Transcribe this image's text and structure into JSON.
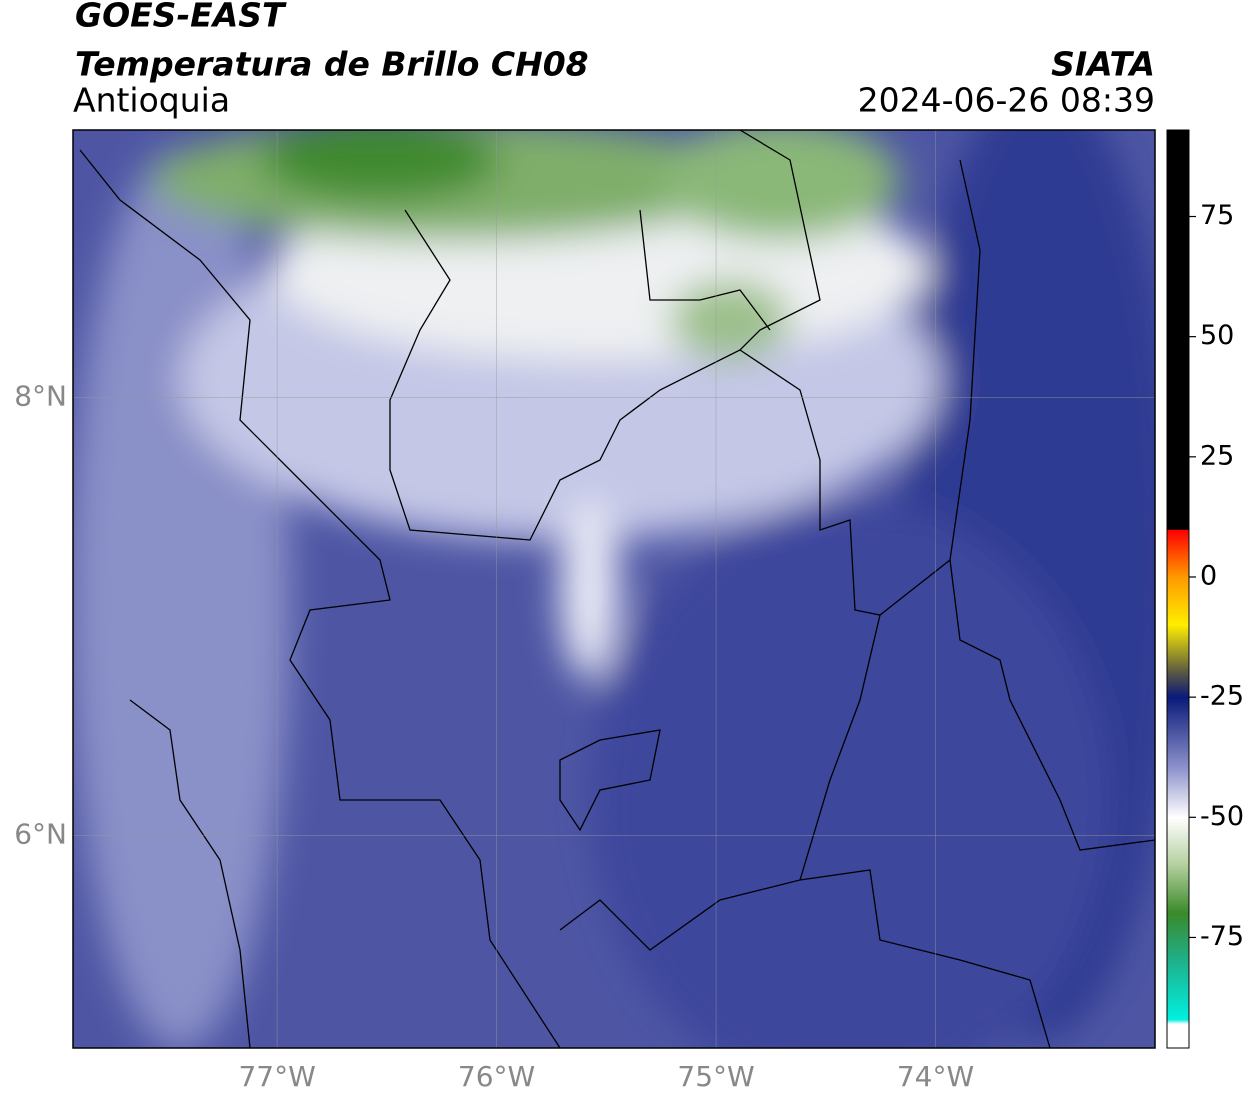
{
  "header": {
    "title": "GOES-EAST",
    "subtitle": "Temperatura de Brillo CH08",
    "region": "Antioquia",
    "source": "SIATA",
    "datetime": "2024-06-26 08:39"
  },
  "map": {
    "xlim": [
      -77.93,
      -73.0
    ],
    "ylim": [
      5.03,
      9.22
    ],
    "xticks": [
      {
        "value": -77,
        "label": "77°W"
      },
      {
        "value": -76,
        "label": "76°W"
      },
      {
        "value": -75,
        "label": "75°W"
      },
      {
        "value": -74,
        "label": "74°W"
      }
    ],
    "yticks": [
      {
        "value": 8,
        "label": "8°N"
      },
      {
        "value": 6,
        "label": "6°N"
      }
    ],
    "grid": true
  },
  "colorbar": {
    "lim": [
      -98,
      93
    ],
    "ticks": [
      75,
      50,
      25,
      0,
      -25,
      -50,
      -75
    ]
  }
}
